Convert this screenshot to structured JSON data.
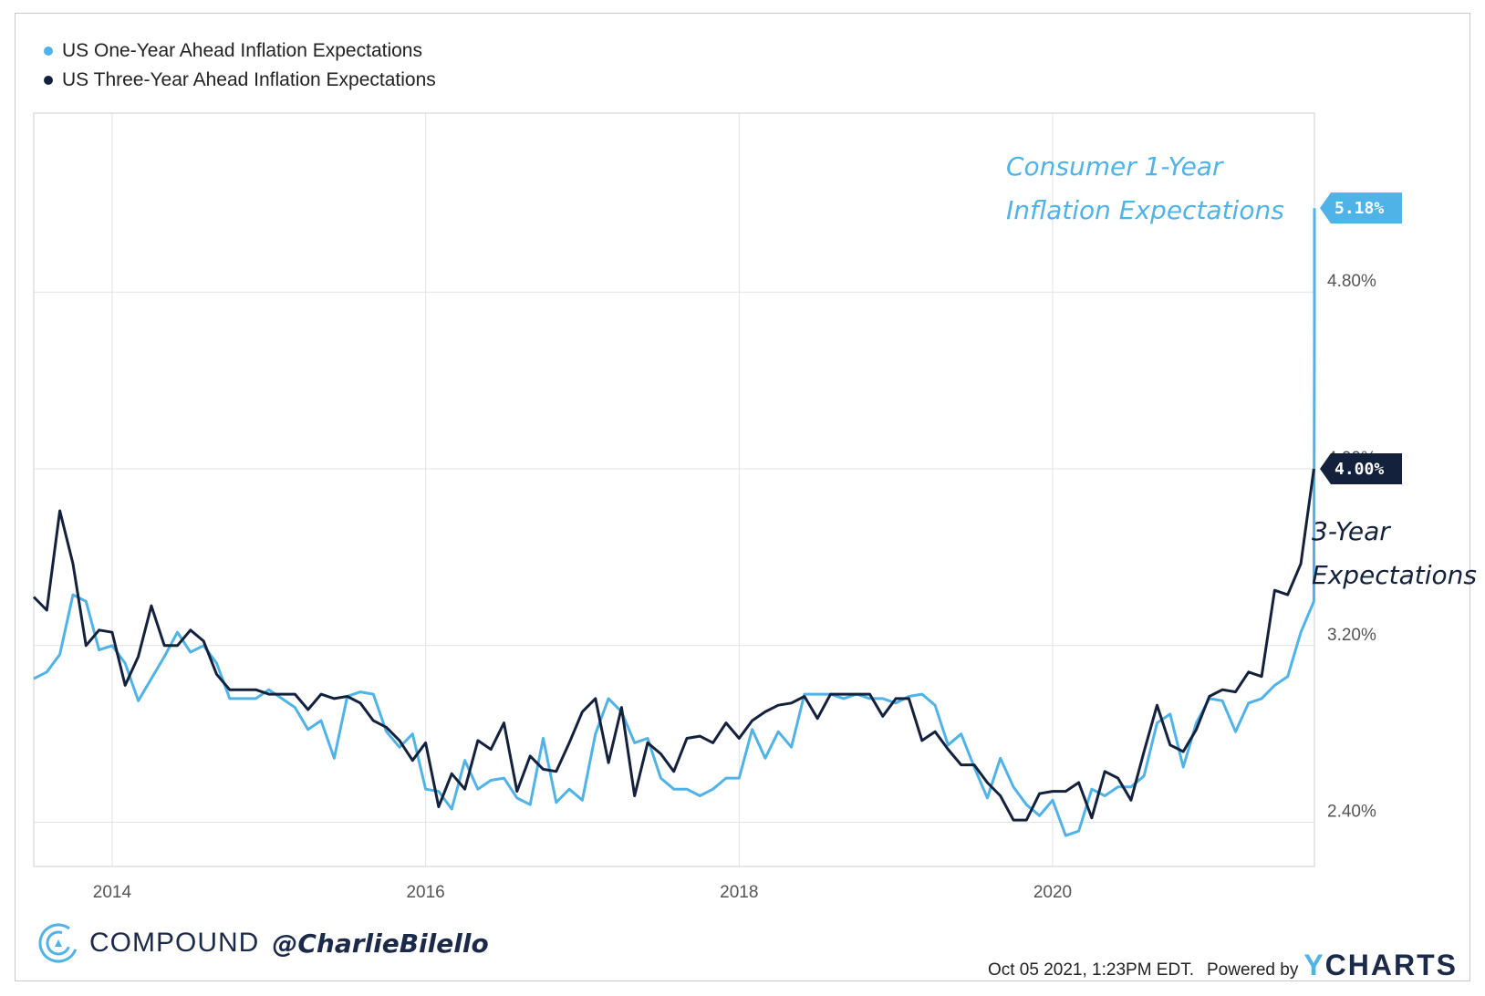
{
  "legend": [
    {
      "label": "US One-Year Ahead Inflation Expectations",
      "color": "#4fb3e8"
    },
    {
      "label": "US Three-Year Ahead Inflation Expectations",
      "color": "#14213d"
    }
  ],
  "annotations": {
    "one_year_line1": "Consumer 1-Year",
    "one_year_line2": "Inflation Expectations",
    "three_year_line1": "3-Year",
    "three_year_line2": "Expectations"
  },
  "end_labels": {
    "one_year": "5.18%",
    "three_year": "4.00%"
  },
  "brand": {
    "name": "COMPOUND",
    "handle": "@CharlieBilello"
  },
  "footer": {
    "timestamp": "Oct 05 2021, 1:23PM EDT.",
    "powered_by": "Powered by",
    "logo_y": "Y",
    "logo_rest": "CHARTS"
  },
  "colors": {
    "one_year": "#4fb3e8",
    "three_year": "#14213d",
    "grid": "#e3e3e3"
  },
  "chart_data": {
    "type": "line",
    "x_tick_labels": [
      "2014",
      "2016",
      "2018",
      "2020"
    ],
    "y_tick_labels": [
      "2.40%",
      "3.20%",
      "4.00%",
      "4.80%"
    ],
    "y_ticks": [
      2.4,
      3.2,
      4.0,
      4.8
    ],
    "x_ticks": [
      2014,
      2016,
      2018,
      2020
    ],
    "xlim": [
      2013.5,
      2021.67
    ],
    "ylim": [
      2.2,
      5.61
    ],
    "grid": true,
    "legend_position": "top-left",
    "series": [
      {
        "name": "US One-Year Ahead Inflation Expectations",
        "color": "#4fb3e8",
        "start": 2013.5,
        "step": 0.08333,
        "values": [
          3.05,
          3.08,
          3.16,
          3.43,
          3.4,
          3.18,
          3.2,
          3.12,
          2.95,
          3.05,
          3.15,
          3.26,
          3.17,
          3.2,
          3.12,
          2.96,
          2.96,
          2.96,
          3.0,
          2.96,
          2.92,
          2.82,
          2.86,
          2.69,
          2.97,
          2.99,
          2.98,
          2.81,
          2.74,
          2.8,
          2.55,
          2.54,
          2.46,
          2.68,
          2.55,
          2.59,
          2.6,
          2.51,
          2.48,
          2.78,
          2.49,
          2.55,
          2.5,
          2.8,
          2.96,
          2.9,
          2.76,
          2.78,
          2.6,
          2.55,
          2.55,
          2.52,
          2.55,
          2.6,
          2.6,
          2.82,
          2.69,
          2.81,
          2.74,
          2.98,
          2.98,
          2.98,
          2.96,
          2.98,
          2.96,
          2.96,
          2.94,
          2.97,
          2.98,
          2.93,
          2.75,
          2.8,
          2.65,
          2.51,
          2.69,
          2.56,
          2.48,
          2.43,
          2.5,
          2.34,
          2.36,
          2.55,
          2.52,
          2.56,
          2.56,
          2.61,
          2.85,
          2.89,
          2.65,
          2.85,
          2.96,
          2.95,
          2.81,
          2.94,
          2.96,
          3.02,
          3.06,
          3.26,
          3.4,
          4.67,
          4.7,
          5.18
        ]
      },
      {
        "name": "US Three-Year Ahead Inflation Expectations",
        "color": "#14213d",
        "start": 2013.5,
        "step": 0.08333,
        "values": [
          3.42,
          3.36,
          3.81,
          3.57,
          3.2,
          3.27,
          3.26,
          3.02,
          3.15,
          3.38,
          3.2,
          3.2,
          3.27,
          3.22,
          3.07,
          3.0,
          3.0,
          3.0,
          2.98,
          2.98,
          2.98,
          2.91,
          2.98,
          2.96,
          2.97,
          2.94,
          2.86,
          2.83,
          2.77,
          2.68,
          2.76,
          2.47,
          2.62,
          2.55,
          2.77,
          2.73,
          2.85,
          2.54,
          2.7,
          2.64,
          2.63,
          2.76,
          2.9,
          2.96,
          2.67,
          2.92,
          2.52,
          2.76,
          2.71,
          2.63,
          2.78,
          2.79,
          2.76,
          2.85,
          2.78,
          2.86,
          2.9,
          2.93,
          2.94,
          2.97,
          2.87,
          2.98,
          2.98,
          2.98,
          2.98,
          2.88,
          2.96,
          2.96,
          2.77,
          2.81,
          2.73,
          2.66,
          2.66,
          2.58,
          2.52,
          2.41,
          2.41,
          2.53,
          2.54,
          2.54,
          2.58,
          2.42,
          2.63,
          2.6,
          2.5,
          2.72,
          2.93,
          2.75,
          2.72,
          2.82,
          2.97,
          3.0,
          2.99,
          3.08,
          3.06,
          3.45,
          3.43,
          3.57,
          4.0
        ]
      }
    ]
  }
}
